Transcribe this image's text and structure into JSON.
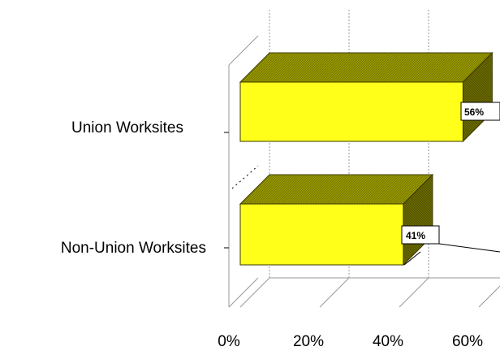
{
  "chart_data": {
    "type": "bar",
    "orientation": "horizontal",
    "three_d": true,
    "title": "",
    "xlabel": "",
    "ylabel": "",
    "categories": [
      "Union Worksites",
      "Non-Union Worksites"
    ],
    "values": [
      56,
      41
    ],
    "data_labels": [
      "56%",
      "41%"
    ],
    "x_ticks": [
      "0%",
      "20%",
      "40%",
      "60%"
    ],
    "x_tick_values": [
      0,
      20,
      40,
      60
    ],
    "xlim": [
      0,
      60
    ],
    "grid": true,
    "legend": "none",
    "colors": {
      "bar_face": "#ffff1a",
      "bar_top": "#9a9a00",
      "bar_side": "#6b6b00",
      "bar_edge": "#3a3a00",
      "gridline": "#999999"
    }
  }
}
